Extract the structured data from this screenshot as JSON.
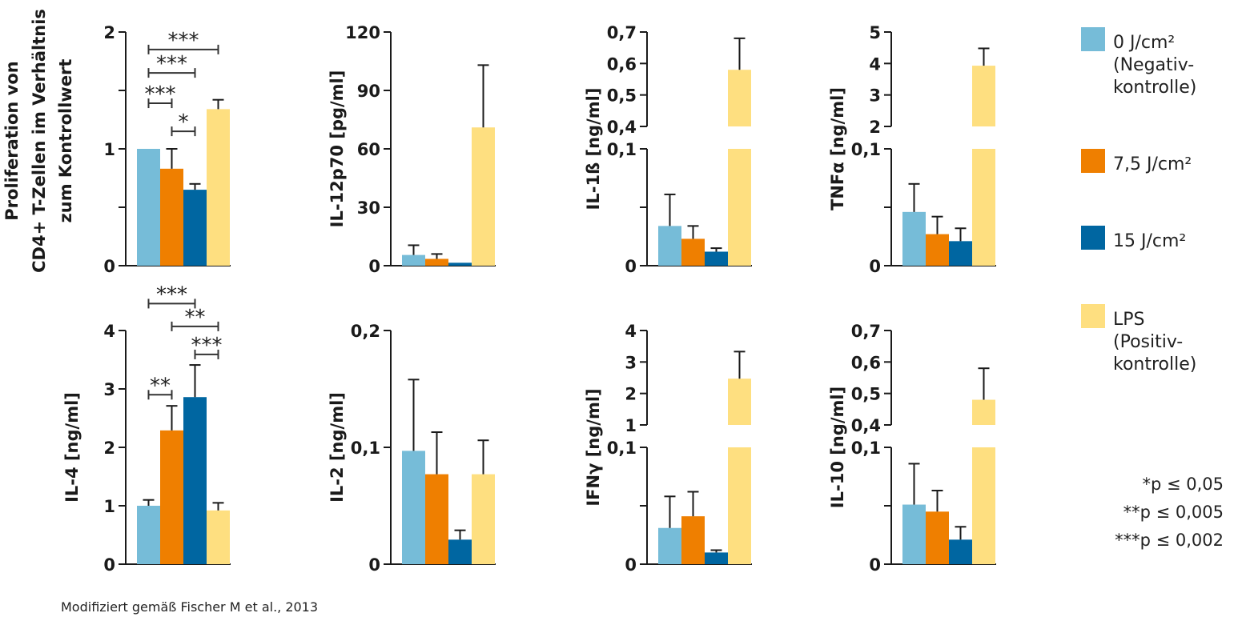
{
  "chart_data": {
    "type": "bar",
    "groups": [
      "0 J/cm²",
      "7,5 J/cm²",
      "15 J/cm²",
      "LPS"
    ],
    "colors": [
      "#76bcd8",
      "#ef7f00",
      "#0066a1",
      "#fedf80"
    ],
    "legend": {
      "placement": "right",
      "entries": [
        {
          "lines": [
            "0 J/cm²",
            "(Negativ-",
            "kontrolle)"
          ],
          "color": "#76bcd8"
        },
        {
          "lines": [
            "7,5 J/cm²"
          ],
          "color": "#ef7f00"
        },
        {
          "lines": [
            "15 J/cm²"
          ],
          "color": "#0066a1"
        },
        {
          "lines": [
            "LPS",
            "(Positiv-",
            "kontrolle)"
          ],
          "color": "#fedf80"
        }
      ]
    },
    "significance_legend": [
      "*p ≤ 0,05",
      "**p ≤ 0,005",
      "***p ≤ 0,002"
    ],
    "source_note": "Modifiziert gemäß Fischer M et al., 2013",
    "panels": [
      {
        "id": "proliferation",
        "ylabel_lines": [
          "Proliferation von",
          "CD4+ T-Zellen im Verhältnis",
          "zum Kontrollwert"
        ],
        "ylim": [
          0,
          2
        ],
        "ticks": [
          {
            "v": 0,
            "label": "0"
          },
          {
            "v": 0.5,
            "label": ""
          },
          {
            "v": 1,
            "label": "1"
          },
          {
            "v": 1.5,
            "label": ""
          },
          {
            "v": 2,
            "label": "2"
          }
        ],
        "values": [
          1.0,
          0.83,
          0.65,
          1.34
        ],
        "errors": [
          0,
          0.17,
          0.05,
          0.08
        ],
        "significance": [
          {
            "from": 0,
            "to": 1,
            "label": "***",
            "level": 1.39
          },
          {
            "from": 1,
            "to": 2,
            "label": "*",
            "level": 1.15
          },
          {
            "from": 0,
            "to": 2,
            "label": "***",
            "level": 1.65
          },
          {
            "from": 0,
            "to": 3,
            "label": "***",
            "level": 1.85
          }
        ]
      },
      {
        "id": "il12p70",
        "ylabel_lines": [
          "IL-12p70 [pg/ml]"
        ],
        "ylim": [
          0,
          120
        ],
        "ticks": [
          {
            "v": 0,
            "label": "0"
          },
          {
            "v": 30,
            "label": "30"
          },
          {
            "v": 60,
            "label": "60"
          },
          {
            "v": 90,
            "label": "90"
          },
          {
            "v": 120,
            "label": "120"
          }
        ],
        "values": [
          5.5,
          3.5,
          1.5,
          71
        ],
        "errors": [
          5,
          2.5,
          0,
          32
        ],
        "significance": []
      },
      {
        "id": "il1b",
        "ylabel_lines": [
          "IL-1ß [ng/ml]"
        ],
        "broken": true,
        "lower": {
          "ylim": [
            0,
            0.1
          ],
          "ticks": [
            {
              "v": 0,
              "label": "0"
            },
            {
              "v": 0.05,
              "label": ""
            },
            {
              "v": 0.1,
              "label": "0,1"
            }
          ]
        },
        "upper": {
          "ylim": [
            0.4,
            0.7
          ],
          "ticks": [
            {
              "v": 0.4,
              "label": "0,4"
            },
            {
              "v": 0.5,
              "label": "0,5"
            },
            {
              "v": 0.6,
              "label": "0,6"
            },
            {
              "v": 0.7,
              "label": "0,7"
            }
          ]
        },
        "values": [
          0.034,
          0.023,
          0.012,
          0.58
        ],
        "errors": [
          0.027,
          0.011,
          0.003,
          0.1
        ],
        "significance": []
      },
      {
        "id": "tnfa",
        "ylabel_lines": [
          "TNFα [ng/ml]"
        ],
        "broken": true,
        "lower": {
          "ylim": [
            0,
            0.1
          ],
          "ticks": [
            {
              "v": 0,
              "label": "0"
            },
            {
              "v": 0.05,
              "label": ""
            },
            {
              "v": 0.1,
              "label": "0,1"
            }
          ]
        },
        "upper": {
          "ylim": [
            2,
            5
          ],
          "ticks": [
            {
              "v": 2,
              "label": "2"
            },
            {
              "v": 3,
              "label": "3"
            },
            {
              "v": 4,
              "label": "4"
            },
            {
              "v": 5,
              "label": "5"
            }
          ]
        },
        "values": [
          0.046,
          0.027,
          0.021,
          3.93
        ],
        "errors": [
          0.024,
          0.015,
          0.011,
          0.55
        ],
        "significance": []
      },
      {
        "id": "il4",
        "ylabel_lines": [
          "IL-4 [ng/ml]"
        ],
        "ylim": [
          0,
          4
        ],
        "ticks": [
          {
            "v": 0,
            "label": "0"
          },
          {
            "v": 1,
            "label": "1"
          },
          {
            "v": 2,
            "label": "2"
          },
          {
            "v": 3,
            "label": "3"
          },
          {
            "v": 4,
            "label": "4"
          }
        ],
        "values": [
          1.0,
          2.29,
          2.86,
          0.92
        ],
        "errors": [
          0.1,
          0.42,
          0.55,
          0.13
        ],
        "significance": [
          {
            "from": 0,
            "to": 1,
            "label": "**",
            "level": 2.9
          },
          {
            "from": 2,
            "to": 3,
            "label": "***",
            "level": 3.59
          },
          {
            "from": 1,
            "to": 3,
            "label": "**",
            "level": 4.07
          },
          {
            "from": 0,
            "to": 2,
            "label": "***",
            "level": 4.46
          }
        ]
      },
      {
        "id": "il2",
        "ylabel_lines": [
          "IL-2 [ng/ml]"
        ],
        "ylim": [
          0,
          0.2
        ],
        "ticks": [
          {
            "v": 0,
            "label": "0"
          },
          {
            "v": 0.1,
            "label": "0,1"
          },
          {
            "v": 0.2,
            "label": "0,2"
          }
        ],
        "values": [
          0.097,
          0.077,
          0.021,
          0.077
        ],
        "errors": [
          0.061,
          0.036,
          0.008,
          0.029
        ],
        "significance": []
      },
      {
        "id": "ifng",
        "ylabel_lines": [
          "IFNγ [ng/ml]"
        ],
        "broken": true,
        "lower": {
          "ylim": [
            0,
            0.1
          ],
          "ticks": [
            {
              "v": 0,
              "label": "0"
            },
            {
              "v": 0.05,
              "label": ""
            },
            {
              "v": 0.1,
              "label": "0,1"
            }
          ]
        },
        "upper": {
          "ylim": [
            1,
            4
          ],
          "ticks": [
            {
              "v": 1,
              "label": "1"
            },
            {
              "v": 2,
              "label": "2"
            },
            {
              "v": 3,
              "label": "3"
            },
            {
              "v": 4,
              "label": "4"
            }
          ]
        },
        "values": [
          0.031,
          0.041,
          0.01,
          2.47
        ],
        "errors": [
          0.027,
          0.021,
          0.002,
          0.86
        ],
        "significance": []
      },
      {
        "id": "il10",
        "ylabel_lines": [
          "IL-10 [ng/ml]"
        ],
        "broken": true,
        "lower": {
          "ylim": [
            0,
            0.1
          ],
          "ticks": [
            {
              "v": 0,
              "label": "0"
            },
            {
              "v": 0.05,
              "label": ""
            },
            {
              "v": 0.1,
              "label": "0,1"
            }
          ]
        },
        "upper": {
          "ylim": [
            0.4,
            0.7
          ],
          "ticks": [
            {
              "v": 0.4,
              "label": "0,4"
            },
            {
              "v": 0.5,
              "label": "0,5"
            },
            {
              "v": 0.6,
              "label": "0,6"
            },
            {
              "v": 0.7,
              "label": "0,7"
            }
          ]
        },
        "values": [
          0.051,
          0.045,
          0.021,
          0.48
        ],
        "errors": [
          0.035,
          0.018,
          0.011,
          0.1
        ],
        "significance": []
      }
    ]
  }
}
